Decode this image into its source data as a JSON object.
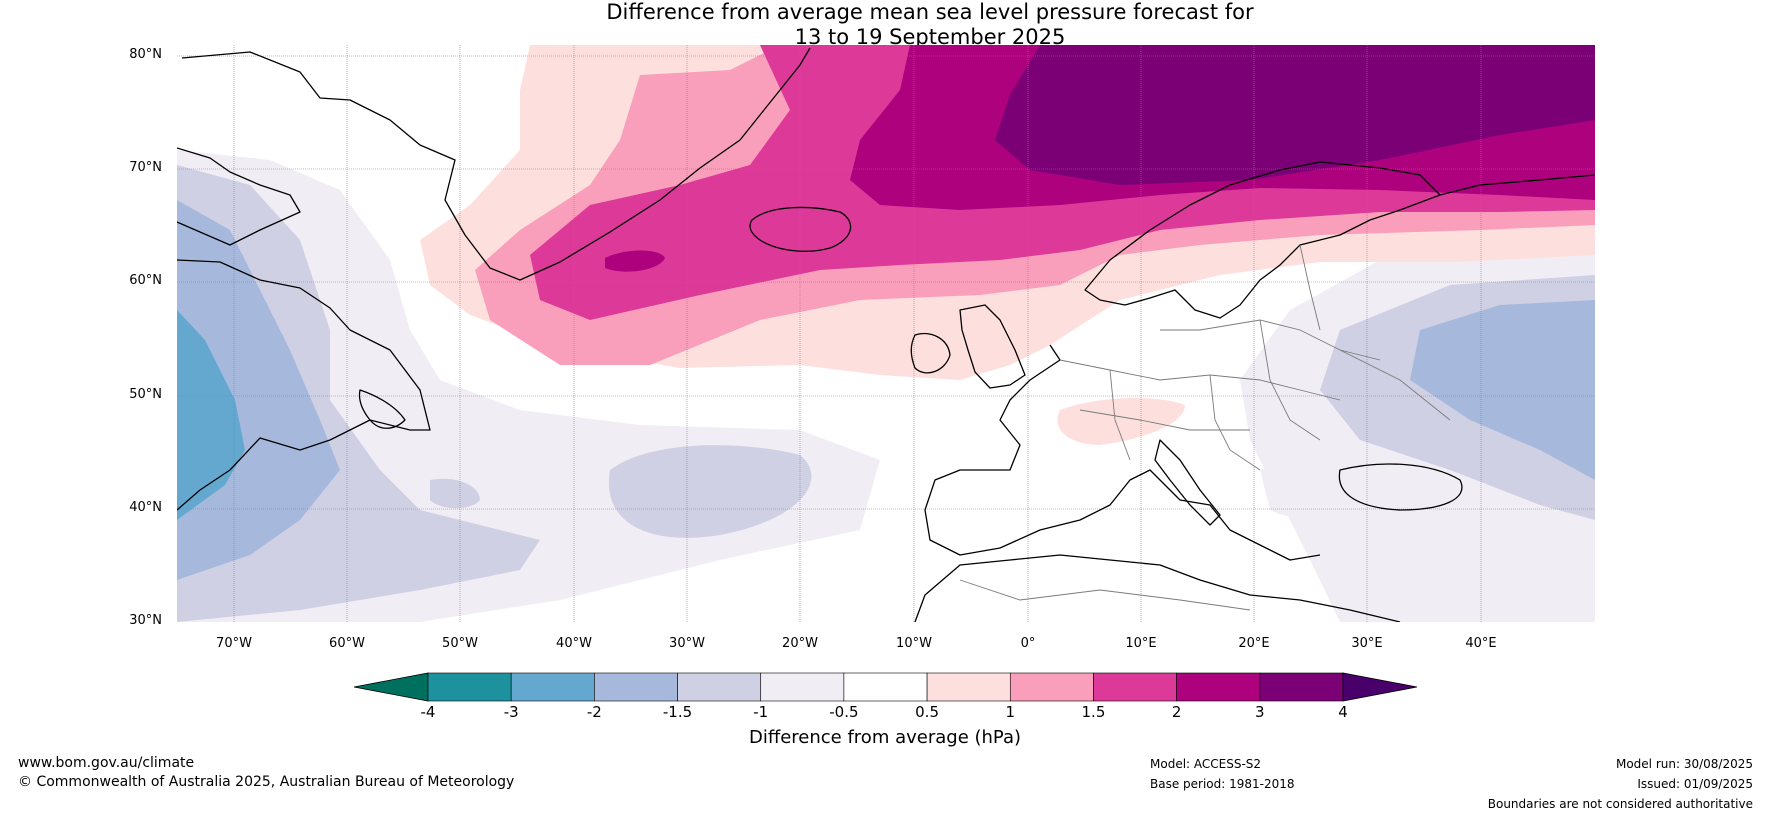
{
  "title": {
    "line1": "Difference from average mean sea level pressure forecast for",
    "line2": "13 to 19 September 2025"
  },
  "map": {
    "lat_labels": [
      "80°N",
      "70°N",
      "60°N",
      "50°N",
      "40°N",
      "30°N"
    ],
    "lon_labels": [
      "70°W",
      "60°W",
      "50°W",
      "40°W",
      "30°W",
      "20°W",
      "10°W",
      "0°",
      "10°E",
      "20°E",
      "30°E",
      "40°E"
    ],
    "lat_range": [
      30,
      81
    ],
    "lon_range": [
      -75,
      50
    ]
  },
  "colorbar": {
    "ticks": [
      "-4",
      "-3",
      "-2",
      "-1.5",
      "-1",
      "-0.5",
      "0.5",
      "1",
      "1.5",
      "2",
      "3",
      "4"
    ],
    "colors": [
      "#00705e",
      "#1d929e",
      "#64a8d0",
      "#a6b9dc",
      "#d0d0e4",
      "#f1edf5",
      "#ffffff",
      "#fde0de",
      "#f99fbb",
      "#dc3999",
      "#ad017e",
      "#7b0076",
      "#4a006a"
    ],
    "label": "Difference from average (hPa)"
  },
  "footer": {
    "website": "www.bom.gov.au/climate",
    "copyright": "© Commonwealth of Australia 2025, Australian Bureau of Meteorology",
    "model": "Model: ACCESS-S2",
    "base_period": "Base period: 1981-2018",
    "model_run": "Model run: 30/08/2025",
    "issued": "Issued: 01/09/2025",
    "disclaimer": "Boundaries are not considered authoritative"
  }
}
